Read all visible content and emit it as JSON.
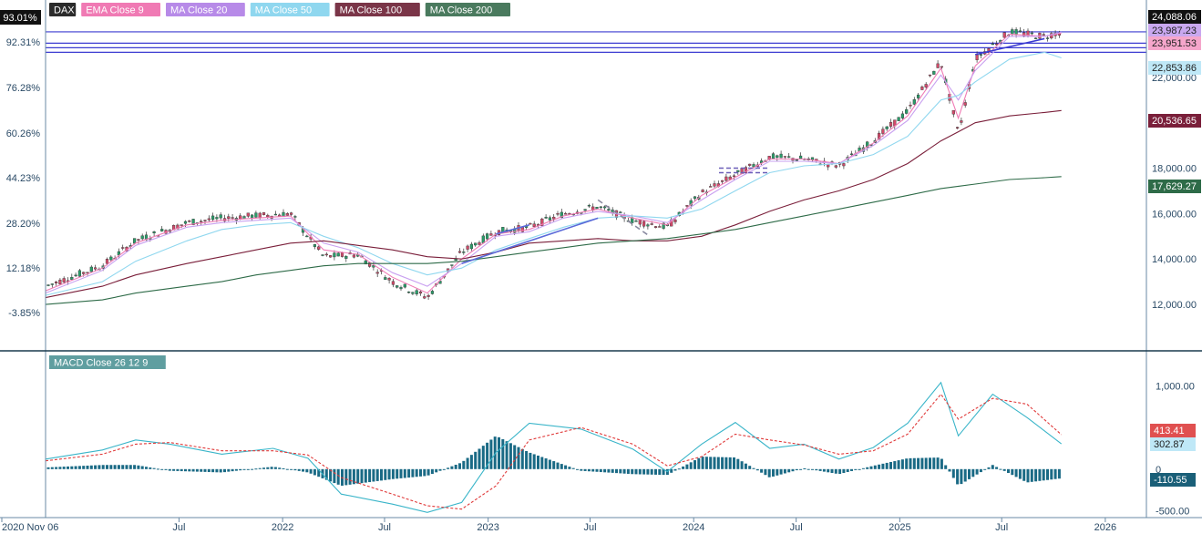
{
  "legend": [
    {
      "label": "DAX",
      "color": "#2b2b2b"
    },
    {
      "label": "EMA  Close 9",
      "color": "#f07ab4"
    },
    {
      "label": "MA  Close 20",
      "color": "#b78ae8"
    },
    {
      "label": "MA  Close 50",
      "color": "#8fd7ef"
    },
    {
      "label": "MA  Close 100",
      "color": "#7a3548"
    },
    {
      "label": "MA  Close 200",
      "color": "#4a7a5e"
    }
  ],
  "macd_legend": {
    "label": "MACD  Close 26 12 9",
    "color": "#5f9ea0"
  },
  "left_axis": {
    "badge": "93.01%",
    "ticks": [
      "92.31%",
      "76.28%",
      "60.26%",
      "44.23%",
      "28.20%",
      "12.18%",
      "-3.85%"
    ]
  },
  "right_axis": {
    "ticks": [
      "22,000.00",
      "20,000.00",
      "18,000.00",
      "16,000.00",
      "14,000.00",
      "12,000.00"
    ],
    "badges": [
      {
        "label": "24,088.06",
        "bg": "#111111",
        "fg": "#ffffff"
      },
      {
        "label": "23,987.23",
        "bg": "#c9a8f0",
        "fg": "#222222"
      },
      {
        "label": "23,951.53",
        "bg": "#f5a6cb",
        "fg": "#222222"
      },
      {
        "label": "22,853.86",
        "bg": "#bfe8f7",
        "fg": "#222222"
      },
      {
        "label": "20,536.65",
        "bg": "#7a1f3a",
        "fg": "#ffffff"
      },
      {
        "label": "17,629.27",
        "bg": "#2e6b48",
        "fg": "#ffffff"
      }
    ]
  },
  "macd_axis": {
    "ticks": [
      "1,000.00",
      "500.00",
      "0",
      "-500.00"
    ],
    "badges": [
      {
        "label": "413.41",
        "bg": "#e05050",
        "fg": "#ffffff"
      },
      {
        "label": "302.87",
        "bg": "#bfe8f7",
        "fg": "#222222"
      },
      {
        "label": "-110.55",
        "bg": "#1a5f78",
        "fg": "#ffffff"
      }
    ]
  },
  "x_axis": {
    "ticks": [
      "2020 Nov 06",
      "Jul",
      "2022",
      "Jul",
      "2023",
      "Jul",
      "2024",
      "Jul",
      "2025",
      "Jul",
      "2026"
    ]
  },
  "chart_data": {
    "type": "line",
    "title": "DAX",
    "ylim": [
      11000,
      24800
    ],
    "x_dates": [
      "2020-11-06",
      "2021-02",
      "2021-04",
      "2021-07",
      "2021-09",
      "2021-11",
      "2022-01",
      "2022-03",
      "2022-05",
      "2022-07",
      "2022-09",
      "2022-11",
      "2023-01",
      "2023-03",
      "2023-05",
      "2023-07",
      "2023-09",
      "2023-11",
      "2024-01",
      "2024-03",
      "2024-05",
      "2024-07",
      "2024-09",
      "2024-11",
      "2025-01",
      "2025-03",
      "2025-04",
      "2025-05",
      "2025-07",
      "2025-09",
      "2025-10"
    ],
    "series": [
      {
        "name": "DAX",
        "values": [
          12800,
          13700,
          14800,
          15600,
          15800,
          15900,
          16000,
          14100,
          14200,
          13000,
          12300,
          14300,
          15200,
          15400,
          16000,
          16300,
          15700,
          15400,
          16900,
          17700,
          18500,
          18400,
          18100,
          19200,
          20500,
          22700,
          19500,
          22800,
          24000,
          23800,
          24000
        ]
      },
      {
        "name": "EMA  Close 9",
        "values": [
          12600,
          13600,
          14700,
          15500,
          15700,
          15800,
          15900,
          14400,
          14200,
          13200,
          12500,
          14000,
          15100,
          15300,
          15900,
          16200,
          15800,
          15500,
          16800,
          17600,
          18400,
          18400,
          18200,
          19100,
          20300,
          22400,
          20200,
          22500,
          23900,
          23800,
          23950
        ]
      },
      {
        "name": "MA  Close 20",
        "values": [
          12500,
          13500,
          14600,
          15400,
          15600,
          15700,
          15800,
          14700,
          14300,
          13400,
          12800,
          13800,
          15000,
          15200,
          15800,
          16100,
          15900,
          15600,
          16600,
          17500,
          18300,
          18300,
          18200,
          19000,
          20100,
          22100,
          21000,
          22300,
          23800,
          23800,
          23987
        ]
      },
      {
        "name": "MA  Close 50",
        "values": [
          12400,
          13000,
          13900,
          14800,
          15300,
          15500,
          15600,
          15000,
          14500,
          13800,
          13300,
          13600,
          14400,
          14900,
          15400,
          15800,
          15900,
          15800,
          16200,
          17000,
          17800,
          18100,
          18200,
          18600,
          19400,
          21000,
          21200,
          21800,
          22800,
          23100,
          22854
        ]
      },
      {
        "name": "MA  Close 100",
        "values": [
          12300,
          12800,
          13300,
          13800,
          14100,
          14400,
          14700,
          14800,
          14600,
          14400,
          14100,
          14000,
          14300,
          14700,
          14800,
          14900,
          14800,
          14800,
          15000,
          15500,
          16100,
          16600,
          17000,
          17500,
          18200,
          19200,
          19600,
          20000,
          20300,
          20450,
          20537
        ]
      },
      {
        "name": "MA  Close 200",
        "values": [
          12000,
          12200,
          12500,
          12800,
          13000,
          13300,
          13500,
          13700,
          13800,
          13800,
          13800,
          13900,
          14100,
          14300,
          14500,
          14700,
          14800,
          14900,
          15100,
          15300,
          15600,
          15900,
          16200,
          16500,
          16800,
          17100,
          17200,
          17300,
          17500,
          17580,
          17629
        ]
      }
    ]
  },
  "macd_data": {
    "type": "line",
    "ylim": [
      -560,
      1300
    ],
    "x_dates": [
      "2020-11-06",
      "2021-02",
      "2021-04",
      "2021-06",
      "2021-09",
      "2021-12",
      "2022-02",
      "2022-04",
      "2022-07",
      "2022-09",
      "2022-11",
      "2023-01",
      "2023-03",
      "2023-06",
      "2023-09",
      "2023-11",
      "2024-01",
      "2024-03",
      "2024-05",
      "2024-07",
      "2024-09",
      "2024-11",
      "2025-01",
      "2025-03",
      "2025-04",
      "2025-06",
      "2025-08",
      "2025-10"
    ],
    "series": [
      {
        "name": "MACD",
        "values": [
          120,
          230,
          350,
          300,
          180,
          250,
          130,
          -300,
          -420,
          -520,
          -400,
          200,
          550,
          480,
          240,
          -30,
          300,
          560,
          250,
          300,
          120,
          260,
          550,
          1040,
          400,
          900,
          620,
          302.87
        ]
      },
      {
        "name": "Signal",
        "values": [
          100,
          180,
          300,
          320,
          220,
          220,
          170,
          -100,
          -300,
          -440,
          -480,
          -200,
          350,
          500,
          300,
          40,
          150,
          420,
          350,
          290,
          180,
          220,
          420,
          900,
          600,
          850,
          780,
          413.41
        ]
      },
      {
        "name": "Histogram",
        "values": [
          20,
          50,
          50,
          -20,
          -40,
          30,
          -40,
          -200,
          -120,
          -80,
          80,
          400,
          200,
          -20,
          -60,
          -70,
          150,
          140,
          -100,
          10,
          -60,
          40,
          130,
          140,
          -200,
          50,
          -160,
          -110.55
        ]
      }
    ]
  }
}
